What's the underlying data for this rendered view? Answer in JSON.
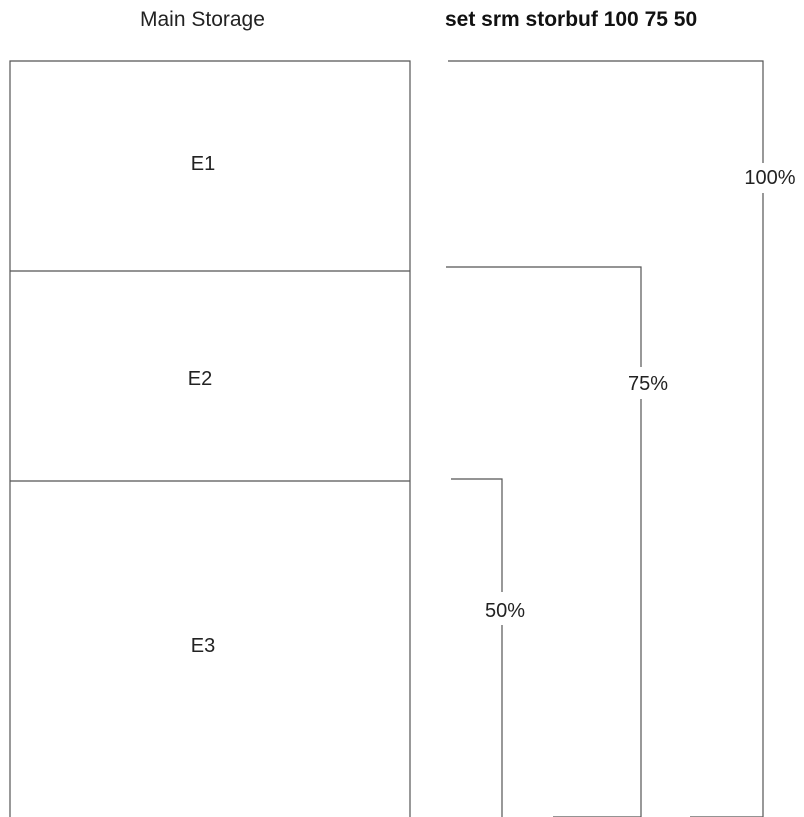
{
  "headings": {
    "left": "Main Storage",
    "right": "set srm storbuf 100 75 50"
  },
  "storage": {
    "regions": [
      {
        "label": "E1"
      },
      {
        "label": "E2"
      },
      {
        "label": "E3"
      }
    ]
  },
  "buffers": [
    {
      "label": "100%"
    },
    {
      "label": "75%"
    },
    {
      "label": "50%"
    }
  ],
  "colors": {
    "line": "#555555",
    "text": "#222222"
  }
}
